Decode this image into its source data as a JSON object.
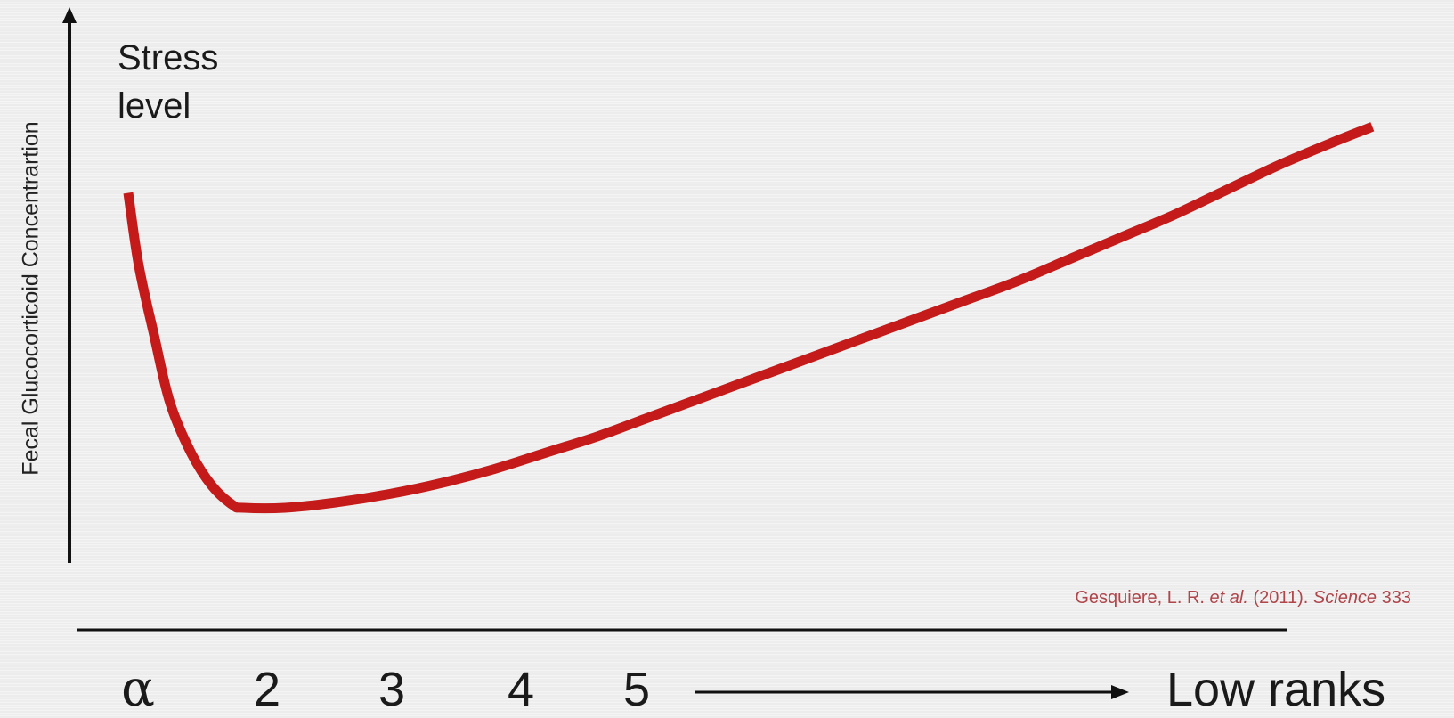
{
  "chart_data": {
    "type": "line",
    "ylabel": "Fecal Glucocorticoid Concentrartion",
    "y_axis_title": [
      "Stress",
      "level"
    ],
    "x_ticks": [
      "α",
      "2",
      "3",
      "4",
      "5"
    ],
    "x_direction_label": "Low ranks",
    "citation": {
      "authors": "Gesquiere, L. R.",
      "etal": "et al.",
      "year": "(2011).",
      "journal": "Science",
      "volume": "333"
    },
    "x_range": [
      0,
      12
    ],
    "y_range": [
      0,
      100
    ],
    "series": [
      {
        "color": "#c41a1a",
        "x": [
          0,
          0.1,
          0.25,
          0.4,
          0.6,
          0.8,
          1.0,
          1.1,
          1.5,
          2,
          2.5,
          3,
          3.5,
          4,
          4.5,
          5,
          5.5,
          6,
          6.5,
          7,
          7.5,
          8,
          8.5,
          9,
          9.5,
          10,
          10.5,
          11,
          11.5,
          11.9
        ],
        "y": [
          67,
          54,
          41,
          29,
          20,
          14,
          10.5,
          10,
          10,
          11,
          12.5,
          14.5,
          17,
          20,
          23,
          26.5,
          30,
          33.5,
          37,
          40.5,
          44,
          47.5,
          51,
          55,
          59,
          63,
          67.5,
          72,
          76,
          79
        ]
      }
    ],
    "grid": false,
    "legend": "none"
  },
  "colors": {
    "line": "#c41a1a",
    "axis": "#111111",
    "citation": "#b0454a",
    "background": "#efefef"
  }
}
